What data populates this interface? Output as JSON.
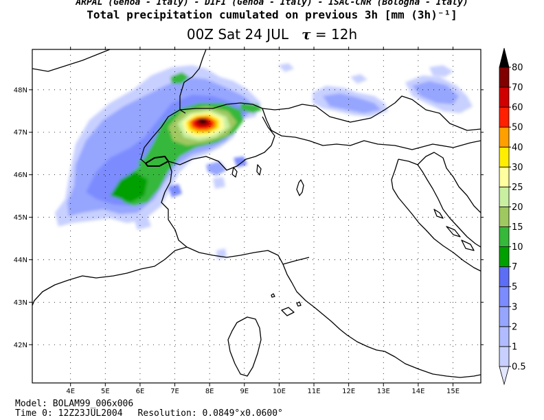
{
  "header": {
    "credit": "ARPAL (Genoa - Italy)  -  DIFI (Genoa - Italy)  -  ISAC-CNR (Bologna - Italy)",
    "title": "Total precipitation cumulated on previous 3h [mm (3h)⁻¹]",
    "subtitle_time": "00Z Sat 24 JUL",
    "subtitle_tau_symbol": "τ",
    "subtitle_tau_value": "= 12h"
  },
  "map": {
    "lon_labels": [
      "4E",
      "5E",
      "6E",
      "7E",
      "8E",
      "9E",
      "10E",
      "11E",
      "12E",
      "13E",
      "14E",
      "15E"
    ],
    "lat_labels": [
      "48N",
      "47N",
      "46N",
      "45N",
      "44N",
      "43N",
      "42N"
    ],
    "lon_range": [
      2.9,
      15.8
    ],
    "lat_range": [
      41.1,
      48.95
    ],
    "precip_max_location": {
      "lon": 7.85,
      "lat": 47.3
    }
  },
  "colorbar": {
    "levels": [
      "0.5",
      "1",
      "2",
      "3",
      "5",
      "7",
      "10",
      "15",
      "20",
      "25",
      "30",
      "40",
      "50",
      "60",
      "70",
      "80"
    ],
    "colors": [
      "#e3e7ff",
      "#c8d0ff",
      "#b0bcff",
      "#96a6ff",
      "#7c8cff",
      "#5e6ef4",
      "#00a000",
      "#36b83a",
      "#a0c860",
      "#c8f0a0",
      "#ffffa0",
      "#ffee00",
      "#ffa000",
      "#ff2000",
      "#d00000",
      "#800000",
      "#000000"
    ]
  },
  "footer": {
    "model": "Model: BOLAM99_006x006",
    "time0": "Time 0: 12Z23JUL2004",
    "resolution": "Resolution: 0.0849°x0.0600°"
  }
}
